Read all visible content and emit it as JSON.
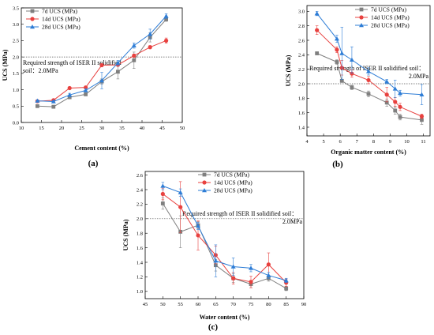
{
  "chart_data": [
    {
      "type": "line",
      "panel_label": "(a)",
      "xlabel": "Cement content (%)",
      "ylabel": "UCS (MPa)",
      "xlim": [
        10,
        50
      ],
      "ylim": [
        0,
        3.5
      ],
      "xticks": [
        10,
        15,
        20,
        25,
        30,
        35,
        40,
        45,
        50
      ],
      "yticks": [
        0.0,
        0.5,
        1.0,
        1.5,
        2.0,
        2.5,
        3.0,
        3.5
      ],
      "legend_position": "top-left",
      "reference_line": {
        "value": 2.0,
        "text_line1": "Required strength of ISER II solidified",
        "text_line2": "soil：2.0MPa"
      },
      "series": [
        {
          "name": "7d UCS (MPa)",
          "color": "#7f7f7f",
          "marker": "square",
          "x": [
            14,
            18,
            22,
            26,
            30,
            34,
            38,
            42,
            46
          ],
          "y": [
            0.5,
            0.48,
            0.77,
            0.86,
            1.25,
            1.55,
            1.9,
            2.6,
            3.15
          ],
          "err": [
            0.04,
            0.04,
            0.04,
            0.04,
            0.08,
            0.22,
            0.25,
            0.14,
            0.06
          ]
        },
        {
          "name": "14d UCS (MPa)",
          "color": "#e8413f",
          "marker": "circle",
          "x": [
            14,
            18,
            22,
            26,
            30,
            34,
            38,
            42,
            46
          ],
          "y": [
            0.65,
            0.68,
            1.05,
            1.07,
            1.75,
            1.76,
            2.04,
            2.3,
            2.5
          ],
          "err": [
            0.03,
            0.03,
            0.04,
            0.04,
            0.04,
            0.04,
            0.05,
            0.05,
            0.08
          ]
        },
        {
          "name": "28d UCS (MPa)",
          "color": "#2e7dd6",
          "marker": "triangle",
          "x": [
            14,
            18,
            22,
            26,
            30,
            34,
            38,
            42,
            46
          ],
          "y": [
            0.66,
            0.64,
            0.84,
            0.98,
            1.28,
            1.82,
            2.35,
            2.7,
            3.25
          ],
          "err": [
            0.03,
            0.03,
            0.05,
            0.05,
            0.25,
            0.08,
            0.08,
            0.15,
            0.07
          ]
        }
      ]
    },
    {
      "type": "line",
      "panel_label": "(b)",
      "xlabel": "Organic matter content (%)",
      "ylabel": "UCS (MPa)",
      "xlim": [
        4,
        11.4
      ],
      "ylim": [
        1.28,
        3.08
      ],
      "xticks": [
        4,
        5,
        6,
        7,
        8,
        9,
        10,
        11
      ],
      "yticks": [
        1.4,
        1.6,
        1.8,
        2.0,
        2.2,
        2.4,
        2.6,
        2.8,
        3.0
      ],
      "legend_position": "top-right",
      "reference_line": {
        "value": 2.0,
        "text_line1": "Required strength of ISER II solidified soil：",
        "text_line2": "2.0MPa"
      },
      "series": [
        {
          "name": "7d UCS (MPa)",
          "color": "#7f7f7f",
          "marker": "square",
          "x": [
            4.6,
            5.8,
            6.1,
            6.7,
            7.7,
            8.8,
            9.3,
            9.6,
            10.9
          ],
          "y": [
            2.42,
            2.3,
            2.04,
            1.95,
            1.86,
            1.74,
            1.63,
            1.54,
            1.5
          ],
          "err": [
            0.02,
            0.03,
            0.02,
            0.03,
            0.04,
            0.05,
            0.05,
            0.04,
            0.06
          ]
        },
        {
          "name": "14d UCS (MPa)",
          "color": "#e8413f",
          "marker": "circle",
          "x": [
            4.6,
            5.8,
            6.1,
            6.7,
            7.7,
            8.8,
            9.3,
            9.6,
            10.9
          ],
          "y": [
            2.74,
            2.47,
            2.22,
            2.14,
            2.05,
            1.85,
            1.75,
            1.68,
            1.55
          ],
          "err": [
            0.06,
            0.04,
            0.1,
            0.05,
            0.05,
            0.1,
            0.06,
            0.05,
            0.03
          ]
        },
        {
          "name": "28d UCS (MPa)",
          "color": "#2e7dd6",
          "marker": "triangle",
          "x": [
            4.6,
            5.8,
            6.1,
            6.7,
            7.7,
            8.8,
            9.3,
            9.6,
            10.9
          ],
          "y": [
            2.97,
            2.62,
            2.42,
            2.33,
            2.17,
            2.03,
            1.93,
            1.87,
            1.85
          ],
          "err": [
            0.03,
            0.05,
            0.36,
            0.18,
            0.05,
            0.03,
            0.12,
            0.04,
            0.14
          ]
        }
      ]
    },
    {
      "type": "line",
      "panel_label": "(c)",
      "xlabel": "Water content (%)",
      "ylabel": "UCS (MPa)",
      "xlim": [
        45,
        90
      ],
      "ylim": [
        0.9,
        2.65
      ],
      "xticks": [
        45,
        50,
        55,
        60,
        65,
        70,
        75,
        80,
        85,
        90
      ],
      "yticks": [
        1.0,
        1.2,
        1.4,
        1.6,
        1.8,
        2.0,
        2.2,
        2.4,
        2.6
      ],
      "legend_position": "top-right",
      "reference_line": {
        "value": 2.0,
        "text_line1": "Required strength of ISER II solidified soil：",
        "text_line2": "2.0MPa"
      },
      "series": [
        {
          "name": "7d UCS (MPa)",
          "color": "#7f7f7f",
          "marker": "square",
          "x": [
            50,
            55,
            60,
            65,
            70,
            75,
            80,
            85
          ],
          "y": [
            2.21,
            1.82,
            1.91,
            1.36,
            1.18,
            1.1,
            1.18,
            1.04
          ],
          "err": [
            0.08,
            0.22,
            0.05,
            0.08,
            0.06,
            0.05,
            0.04,
            0.03
          ]
        },
        {
          "name": "14d UCS (MPa)",
          "color": "#e8413f",
          "marker": "circle",
          "x": [
            50,
            55,
            60,
            65,
            70,
            75,
            80,
            85
          ],
          "y": [
            2.34,
            2.16,
            1.77,
            1.5,
            1.18,
            1.13,
            1.37,
            1.12
          ],
          "err": [
            0.08,
            0.35,
            0.2,
            0.12,
            0.08,
            0.08,
            0.16,
            0.05
          ]
        },
        {
          "name": "28d UCS (MPa)",
          "color": "#2e7dd6",
          "marker": "triangle",
          "x": [
            50,
            55,
            60,
            65,
            70,
            75,
            80,
            85
          ],
          "y": [
            2.45,
            2.36,
            1.9,
            1.42,
            1.34,
            1.32,
            1.22,
            1.15
          ],
          "err": [
            0.05,
            0.05,
            0.05,
            0.22,
            0.12,
            0.05,
            0.04,
            0.03
          ]
        }
      ]
    }
  ]
}
